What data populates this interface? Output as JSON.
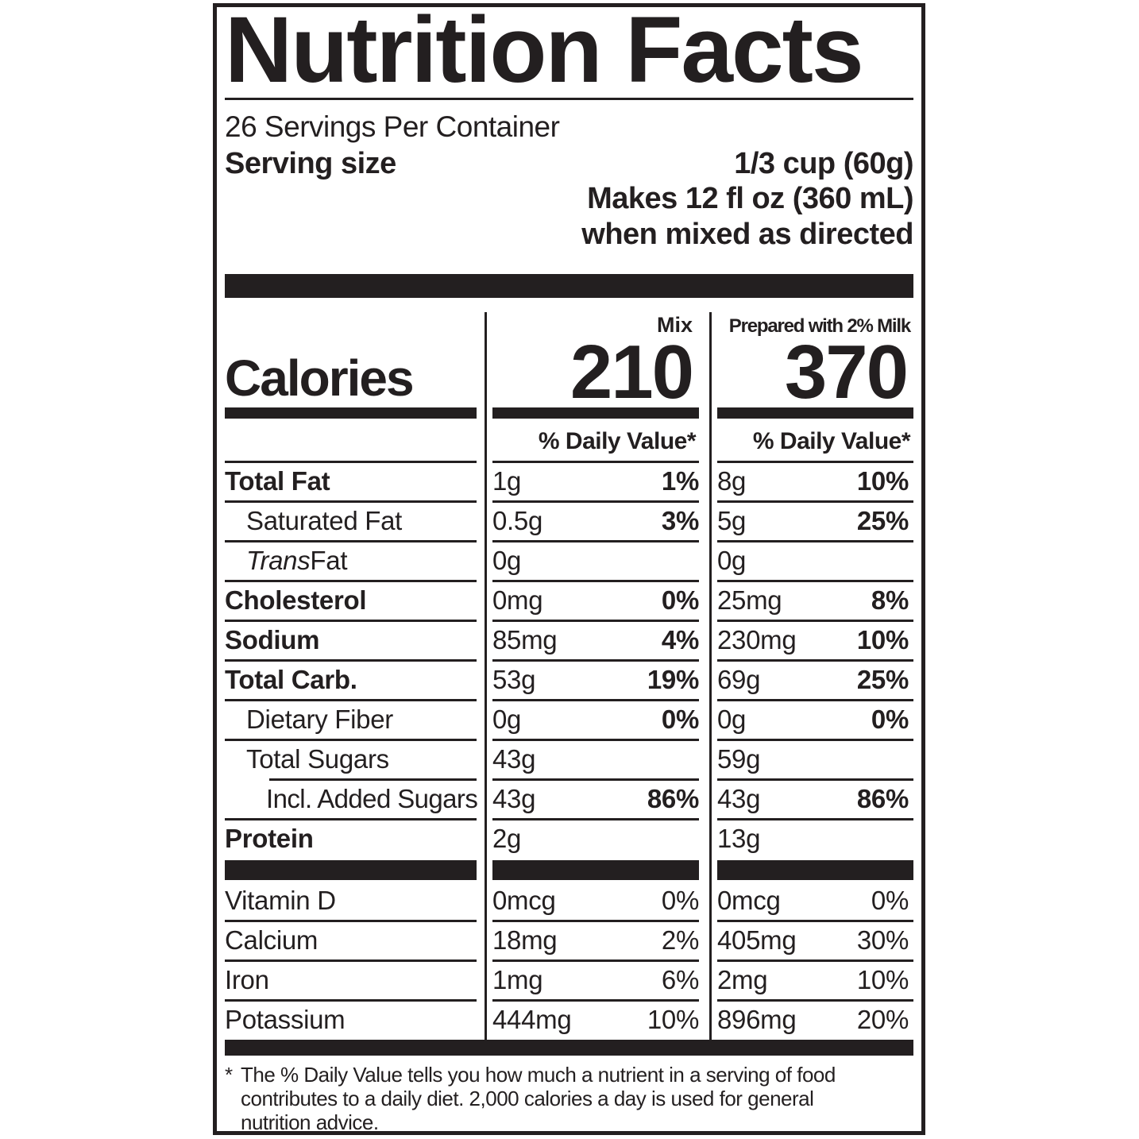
{
  "colors": {
    "ink": "#231f20",
    "paper": "#ffffff"
  },
  "label": {
    "title": "Nutrition Facts",
    "servings_per_container": "26 Servings Per Container",
    "serving_size": {
      "label": "Serving size",
      "value": "1/3 cup (60g)"
    },
    "preparation_notes": [
      "Makes 12 fl oz (360 mL)",
      "when mixed as directed"
    ],
    "column_headers": [
      "Mix",
      "Prepared with 2% Milk"
    ],
    "calories": {
      "label": "Calories",
      "values": [
        "210",
        "370"
      ]
    },
    "daily_value_header": "% Daily Value*",
    "nutrient_rows": [
      {
        "name": "Total Fat",
        "bold": true,
        "indent": 0,
        "cols": [
          {
            "amount": "1g",
            "dv": "1%"
          },
          {
            "amount": "8g",
            "dv": "10%"
          }
        ]
      },
      {
        "name": "Saturated Fat",
        "bold": false,
        "indent": 1,
        "cols": [
          {
            "amount": "0.5g",
            "dv": "3%"
          },
          {
            "amount": "5g",
            "dv": "25%"
          }
        ]
      },
      {
        "name_italic": "Trans",
        "name": " Fat",
        "bold": false,
        "indent": 1,
        "cols": [
          {
            "amount": "0g",
            "dv": ""
          },
          {
            "amount": "0g",
            "dv": ""
          }
        ]
      },
      {
        "name": "Cholesterol",
        "bold": true,
        "indent": 0,
        "cols": [
          {
            "amount": "0mg",
            "dv": "0%"
          },
          {
            "amount": "25mg",
            "dv": "8%"
          }
        ]
      },
      {
        "name": "Sodium",
        "bold": true,
        "indent": 0,
        "cols": [
          {
            "amount": "85mg",
            "dv": "4%"
          },
          {
            "amount": "230mg",
            "dv": "10%"
          }
        ]
      },
      {
        "name": "Total Carb.",
        "bold": true,
        "indent": 0,
        "cols": [
          {
            "amount": "53g",
            "dv": "19%"
          },
          {
            "amount": "69g",
            "dv": "25%"
          }
        ]
      },
      {
        "name": "Dietary Fiber",
        "bold": false,
        "indent": 1,
        "cols": [
          {
            "amount": "0g",
            "dv": "0%"
          },
          {
            "amount": "0g",
            "dv": "0%"
          }
        ]
      },
      {
        "name": "Total Sugars",
        "bold": false,
        "indent": 1,
        "cols": [
          {
            "amount": "43g",
            "dv": ""
          },
          {
            "amount": "59g",
            "dv": ""
          }
        ]
      },
      {
        "name": "Incl. Added Sugars",
        "bold": false,
        "indent": 2,
        "indent_line": true,
        "cols": [
          {
            "amount": "43g",
            "dv": "86%"
          },
          {
            "amount": "43g",
            "dv": "86%"
          }
        ]
      },
      {
        "name": "Protein",
        "bold": true,
        "indent": 0,
        "cols": [
          {
            "amount": "2g",
            "dv": ""
          },
          {
            "amount": "13g",
            "dv": ""
          }
        ]
      }
    ],
    "micronutrient_rows": [
      {
        "name": "Vitamin D",
        "cols": [
          {
            "amount": "0mcg",
            "dv": "0%"
          },
          {
            "amount": "0mcg",
            "dv": "0%"
          }
        ]
      },
      {
        "name": "Calcium",
        "cols": [
          {
            "amount": "18mg",
            "dv": "2%"
          },
          {
            "amount": "405mg",
            "dv": "30%"
          }
        ]
      },
      {
        "name": "Iron",
        "cols": [
          {
            "amount": "1mg",
            "dv": "6%"
          },
          {
            "amount": "2mg",
            "dv": "10%"
          }
        ]
      },
      {
        "name": "Potassium",
        "cols": [
          {
            "amount": "444mg",
            "dv": "10%"
          },
          {
            "amount": "896mg",
            "dv": "20%"
          }
        ]
      }
    ],
    "footnote": {
      "marker": "*",
      "lines": [
        "The % Daily Value tells you how much a nutrient in a serving of food",
        "contributes to a daily diet. 2,000 calories a day is used for general",
        "nutrition advice."
      ]
    }
  }
}
